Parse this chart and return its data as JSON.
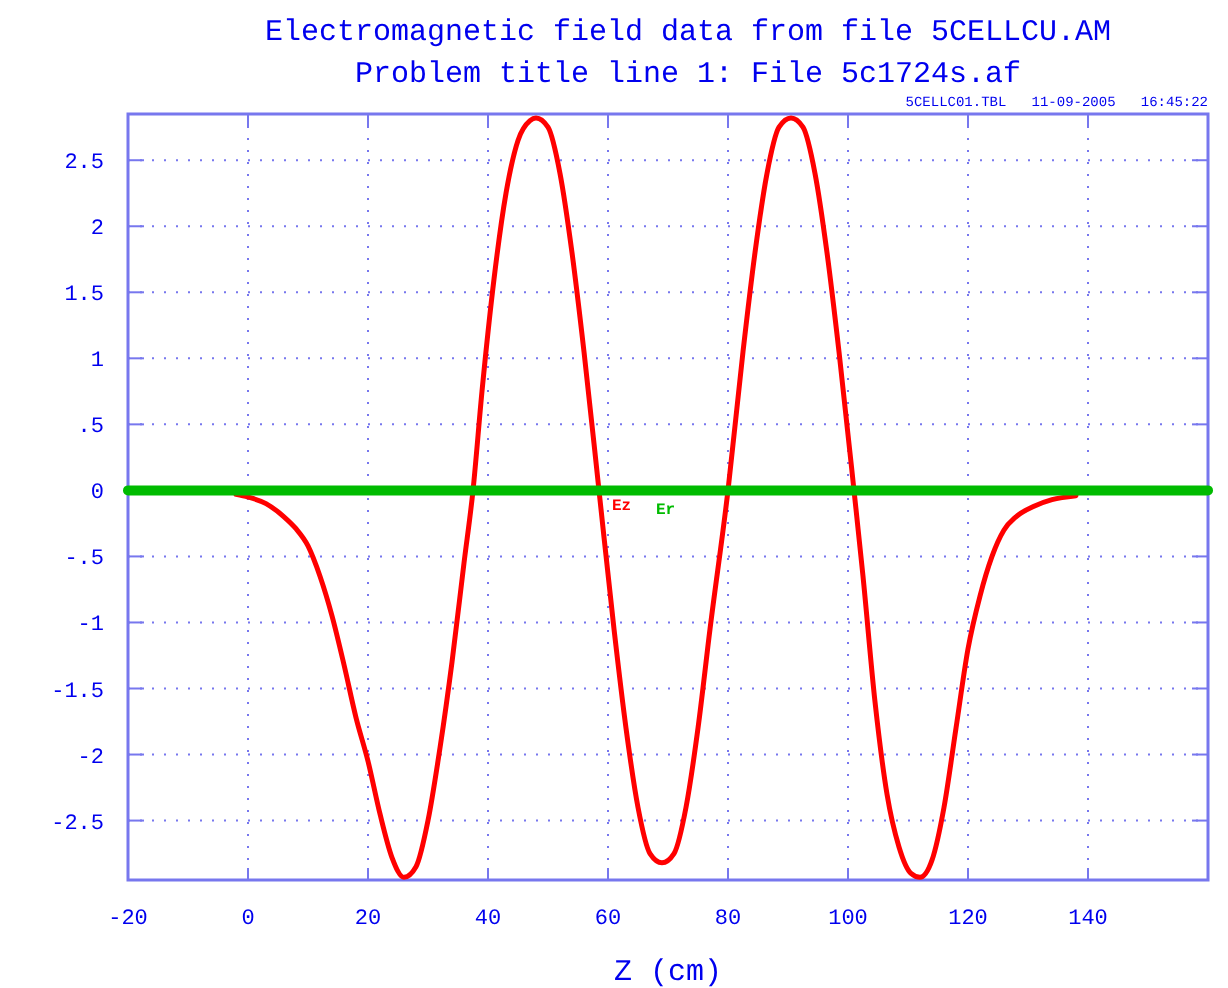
{
  "chart_data": {
    "type": "line",
    "title": "Electromagnetic field data from file 5CELLCU.AM",
    "subtitle": "Problem title line 1:  File 5c1724s.af",
    "xlabel": "Z (cm)",
    "annotations": [
      "5CELLC01.TBL   11-09-2005   16:45:22"
    ],
    "xlim": [
      -20,
      160
    ],
    "xticks": [
      -20,
      0,
      20,
      40,
      60,
      80,
      100,
      120,
      140
    ],
    "ylim": [
      -2.95,
      2.85
    ],
    "yticks": [
      2.5,
      2,
      1.5,
      1,
      {
        "value": 0.5,
        "label": ".5"
      },
      0,
      {
        "value": -0.5,
        "label": "-.5"
      },
      -1,
      -1.5,
      -2,
      -2.5
    ],
    "grid": true,
    "marker": "none",
    "line_style": "solid",
    "series": [
      {
        "name": "Ez",
        "color": "#ff0000",
        "x": [
          -2,
          0,
          3,
          6,
          8,
          10,
          12,
          14,
          16,
          18,
          20,
          22,
          24,
          26,
          28,
          30,
          32,
          34,
          36,
          37.5,
          39,
          41,
          43,
          45,
          47,
          48,
          50,
          52,
          54,
          56,
          58.5,
          61,
          63,
          65,
          67,
          69,
          71,
          73,
          75,
          77,
          80,
          82.5,
          84.5,
          86.5,
          88.5,
          90.5,
          92.5,
          94.5,
          96.5,
          98.5,
          101,
          102.5,
          104.5,
          106.5,
          108.5,
          110.5,
          112,
          114,
          116,
          118,
          120,
          122,
          124,
          126,
          128,
          131,
          134,
          138
        ],
        "values": [
          -0.03,
          -0.05,
          -0.1,
          -0.2,
          -0.29,
          -0.42,
          -0.65,
          -0.95,
          -1.32,
          -1.72,
          -2.05,
          -2.45,
          -2.78,
          -2.93,
          -2.85,
          -2.5,
          -1.95,
          -1.3,
          -0.55,
          0,
          0.75,
          1.6,
          2.25,
          2.65,
          2.8,
          2.82,
          2.75,
          2.4,
          1.8,
          1.05,
          0,
          -1.05,
          -1.8,
          -2.4,
          -2.75,
          -2.82,
          -2.75,
          -2.4,
          -1.8,
          -1.05,
          0,
          1.05,
          1.8,
          2.4,
          2.75,
          2.82,
          2.75,
          2.4,
          1.8,
          1.05,
          0,
          -0.65,
          -1.6,
          -2.3,
          -2.7,
          -2.9,
          -2.93,
          -2.8,
          -2.4,
          -1.8,
          -1.2,
          -0.8,
          -0.5,
          -0.3,
          -0.2,
          -0.12,
          -0.07,
          -0.04
        ]
      },
      {
        "name": "Er",
        "color": "#00bb00",
        "x": [
          -20,
          160
        ],
        "values": [
          0,
          0
        ]
      }
    ]
  }
}
